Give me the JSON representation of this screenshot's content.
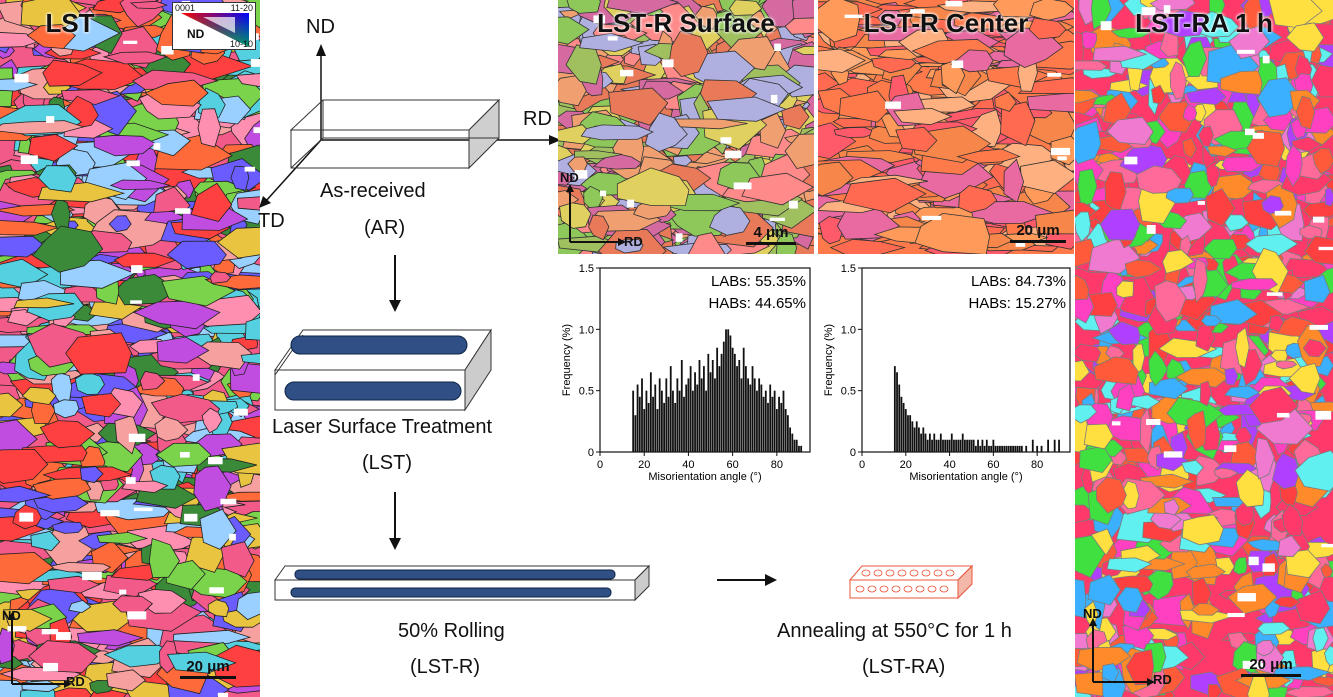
{
  "panels": {
    "lst": {
      "title": "LST",
      "scale": "20 μm",
      "nd": "ND",
      "rd": "RD"
    },
    "lst_r_surface": {
      "title": "LST-R Surface",
      "scale": "4 μm",
      "nd": "ND",
      "rd": "RD"
    },
    "lst_r_center": {
      "title": "LST-R Center",
      "scale": "20 μm"
    },
    "lst_ra": {
      "title": "LST-RA 1 h",
      "scale": "20 μm",
      "nd": "ND",
      "rd": "RD"
    }
  },
  "ipf_key": {
    "top_left": "0001",
    "top_right": "11-20",
    "bottom_right": "10-10",
    "label": "ND"
  },
  "diagram": {
    "axis_nd": "ND",
    "axis_rd": "RD",
    "axis_td": "TD",
    "as_received": "As-received",
    "ar": "(AR)",
    "laser": "Laser Surface Treatment",
    "lst": "(LST)",
    "rolling": "50% Rolling",
    "lst_r": "(LST-R)",
    "annealing": "Annealing at 550°C for 1 h",
    "lst_ra": "(LST-RA)"
  },
  "chart_data": [
    {
      "type": "bar",
      "xlabel": "Misorientation angle (°)",
      "ylabel": "Frequency (%)",
      "xlim": [
        0,
        95
      ],
      "ylim": [
        0,
        1.5
      ],
      "xticks": [
        0,
        20,
        40,
        60,
        80
      ],
      "yticks": [
        0,
        0.5,
        1.0,
        1.5
      ],
      "annotations": [
        "LABs: 55.35%",
        "HABs: 44.65%"
      ],
      "x": [
        15,
        16,
        17,
        18,
        19,
        20,
        21,
        22,
        23,
        24,
        25,
        26,
        27,
        28,
        29,
        30,
        31,
        32,
        33,
        34,
        35,
        36,
        37,
        38,
        39,
        40,
        41,
        42,
        43,
        44,
        45,
        46,
        47,
        48,
        49,
        50,
        51,
        52,
        53,
        54,
        55,
        56,
        57,
        58,
        59,
        60,
        61,
        62,
        63,
        64,
        65,
        66,
        67,
        68,
        69,
        70,
        71,
        72,
        73,
        74,
        75,
        76,
        77,
        78,
        79,
        80,
        81,
        82,
        83,
        84,
        85,
        86,
        87,
        88,
        89,
        90,
        91
      ],
      "values": [
        0.5,
        0.3,
        0.55,
        0.45,
        0.6,
        0.35,
        0.5,
        0.4,
        0.65,
        0.45,
        0.55,
        0.35,
        0.6,
        0.5,
        0.4,
        0.6,
        0.45,
        0.7,
        0.5,
        0.4,
        0.6,
        0.5,
        0.75,
        0.45,
        0.55,
        0.6,
        0.7,
        0.5,
        0.65,
        0.55,
        0.75,
        0.6,
        0.7,
        0.5,
        0.8,
        0.65,
        0.75,
        0.6,
        0.85,
        0.7,
        0.8,
        0.9,
        1.0,
        1.0,
        0.95,
        0.85,
        0.8,
        0.7,
        0.75,
        0.6,
        0.85,
        0.7,
        0.6,
        0.55,
        0.7,
        0.6,
        0.5,
        0.6,
        0.55,
        0.45,
        0.5,
        0.4,
        0.55,
        0.45,
        0.5,
        0.35,
        0.45,
        0.4,
        0.5,
        0.35,
        0.3,
        0.2,
        0.15,
        0.1,
        0.1,
        0.05,
        0.05
      ]
    },
    {
      "type": "bar",
      "xlabel": "Misorientation angle (°)",
      "ylabel": "Frequency (%)",
      "xlim": [
        0,
        95
      ],
      "ylim": [
        0,
        1.5
      ],
      "xticks": [
        0,
        20,
        40,
        60,
        80
      ],
      "yticks": [
        0,
        0.5,
        1.0,
        1.5
      ],
      "annotations": [
        "LABs: 84.73%",
        "HABs: 15.27%"
      ],
      "x": [
        15,
        16,
        17,
        18,
        19,
        20,
        21,
        22,
        23,
        24,
        25,
        26,
        27,
        28,
        29,
        30,
        31,
        32,
        33,
        34,
        35,
        36,
        37,
        38,
        39,
        40,
        41,
        42,
        43,
        44,
        45,
        46,
        47,
        48,
        49,
        50,
        51,
        52,
        53,
        54,
        55,
        56,
        57,
        58,
        59,
        60,
        61,
        62,
        63,
        64,
        65,
        66,
        67,
        68,
        69,
        70,
        71,
        72,
        73,
        75,
        78,
        80,
        82,
        85,
        88,
        90
      ],
      "values": [
        0.7,
        0.65,
        0.55,
        0.45,
        0.4,
        0.35,
        0.3,
        0.3,
        0.25,
        0.2,
        0.25,
        0.2,
        0.15,
        0.2,
        0.15,
        0.1,
        0.15,
        0.1,
        0.15,
        0.1,
        0.1,
        0.15,
        0.1,
        0.1,
        0.1,
        0.1,
        0.15,
        0.1,
        0.1,
        0.1,
        0.1,
        0.15,
        0.1,
        0.1,
        0.1,
        0.1,
        0.1,
        0.05,
        0.1,
        0.05,
        0.1,
        0.05,
        0.1,
        0.05,
        0.05,
        0.1,
        0.05,
        0.05,
        0.05,
        0.05,
        0.05,
        0.05,
        0.05,
        0.05,
        0.05,
        0.05,
        0.05,
        0.05,
        0.05,
        0.05,
        0.1,
        0.05,
        0.05,
        0.1,
        0.1,
        0.1
      ]
    }
  ]
}
